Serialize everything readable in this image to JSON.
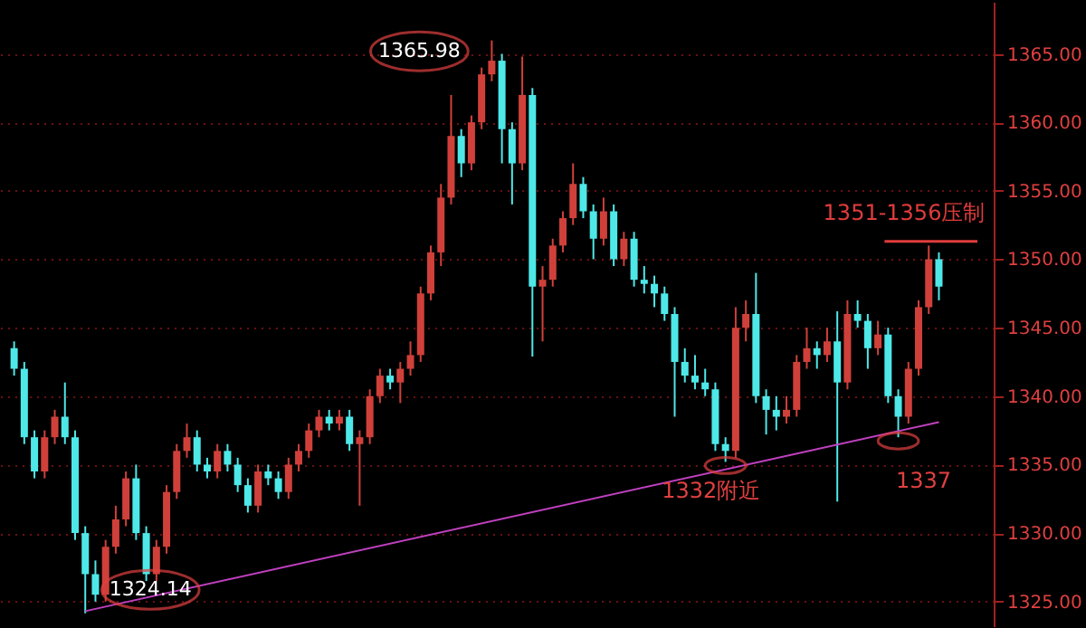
{
  "chart_data": {
    "type": "candlestick",
    "categories": [
      null,
      null,
      null,
      null,
      null,
      null,
      null,
      null,
      null,
      null,
      null,
      null,
      null,
      null,
      null,
      null,
      null,
      null,
      null,
      null,
      null,
      null,
      null,
      null,
      null,
      null,
      null,
      null,
      null,
      null,
      null,
      null,
      null,
      null,
      null,
      null,
      null,
      null,
      null,
      null,
      null,
      null,
      null,
      null,
      null,
      null,
      null,
      null,
      null,
      null,
      null,
      null,
      null,
      null,
      null,
      null,
      null,
      null,
      null,
      null,
      null,
      null,
      null,
      null,
      null,
      null,
      null,
      null,
      null,
      null,
      null,
      null,
      null,
      null,
      null,
      null,
      null,
      null,
      null,
      null,
      null,
      null,
      null,
      null,
      null,
      null,
      null,
      null,
      null,
      null,
      null,
      null
    ],
    "ohlc": [
      [
        1343.5,
        1344,
        1341.5,
        1342
      ],
      [
        1342,
        1342.5,
        1336.5,
        1337
      ],
      [
        1337,
        1337.5,
        1334,
        1334.5
      ],
      [
        1334.5,
        1337.5,
        1334,
        1337
      ],
      [
        1337,
        1339,
        1336.5,
        1338.5
      ],
      [
        1338.5,
        1341,
        1336.5,
        1337
      ],
      [
        1337,
        1337.5,
        1329.5,
        1330
      ],
      [
        1330,
        1330.5,
        1324.14,
        1327
      ],
      [
        1327,
        1328,
        1325,
        1325.5
      ],
      [
        1325.5,
        1329.5,
        1325,
        1329
      ],
      [
        1329,
        1332,
        1328.5,
        1331
      ],
      [
        1331,
        1334.5,
        1330.5,
        1334
      ],
      [
        1334,
        1335,
        1329.5,
        1330
      ],
      [
        1330,
        1330.5,
        1326.5,
        1327
      ],
      [
        1327,
        1329.5,
        1326.5,
        1329
      ],
      [
        1329,
        1333.5,
        1328.5,
        1333
      ],
      [
        1333,
        1336.5,
        1332.5,
        1336
      ],
      [
        1336,
        1338,
        1335.5,
        1337
      ],
      [
        1337,
        1337.5,
        1334.5,
        1335
      ],
      [
        1335,
        1335.5,
        1334,
        1334.5
      ],
      [
        1334.5,
        1336.5,
        1334,
        1336
      ],
      [
        1336,
        1336.5,
        1334.5,
        1335
      ],
      [
        1335,
        1335.5,
        1333,
        1333.5
      ],
      [
        1333.5,
        1334,
        1331.5,
        1332
      ],
      [
        1332,
        1335,
        1331.5,
        1334.5
      ],
      [
        1334.5,
        1335,
        1333.5,
        1334
      ],
      [
        1334,
        1334.5,
        1332.5,
        1333
      ],
      [
        1333,
        1335.5,
        1332.5,
        1335
      ],
      [
        1335,
        1336.5,
        1334.5,
        1336
      ],
      [
        1336,
        1338,
        1335.5,
        1337.5
      ],
      [
        1337.5,
        1339,
        1337,
        1338.5
      ],
      [
        1338.5,
        1339,
        1337.5,
        1338
      ],
      [
        1338,
        1339,
        1337.5,
        1338.5
      ],
      [
        1338.5,
        1339,
        1336,
        1336.5
      ],
      [
        1336.5,
        1337.5,
        1332,
        1337
      ],
      [
        1337,
        1340.5,
        1336.5,
        1340
      ],
      [
        1340,
        1342,
        1339.5,
        1341.5
      ],
      [
        1341.5,
        1342,
        1340.5,
        1341
      ],
      [
        1341,
        1342.5,
        1339.5,
        1342
      ],
      [
        1342,
        1344,
        1341.5,
        1343
      ],
      [
        1343,
        1348,
        1342.5,
        1347.5
      ],
      [
        1347.5,
        1351,
        1347,
        1350.5
      ],
      [
        1350.5,
        1355.5,
        1349.5,
        1354.5
      ],
      [
        1354.5,
        1362,
        1354,
        1359
      ],
      [
        1359,
        1359.5,
        1356,
        1357
      ],
      [
        1357,
        1360.5,
        1356.5,
        1360
      ],
      [
        1360,
        1364,
        1359.5,
        1363.5
      ],
      [
        1363.5,
        1365.98,
        1363,
        1364.5
      ],
      [
        1364.5,
        1365,
        1357,
        1359.5
      ],
      [
        1359.5,
        1360,
        1354,
        1357
      ],
      [
        1357,
        1364.8,
        1356.5,
        1362
      ],
      [
        1362,
        1362.5,
        1342.9,
        1348
      ],
      [
        1348,
        1349.5,
        1344,
        1348.5
      ],
      [
        1348.5,
        1351.5,
        1348,
        1351
      ],
      [
        1351,
        1353.5,
        1350.5,
        1353
      ],
      [
        1353,
        1357,
        1352.5,
        1355.5
      ],
      [
        1355.5,
        1356,
        1353,
        1353.5
      ],
      [
        1353.5,
        1354,
        1350,
        1351.5
      ],
      [
        1351.5,
        1354.5,
        1351,
        1353.5
      ],
      [
        1353.5,
        1354,
        1349.5,
        1350
      ],
      [
        1350,
        1352,
        1349.5,
        1351.5
      ],
      [
        1351.5,
        1352,
        1348,
        1348.5
      ],
      [
        1348.5,
        1349.5,
        1347.5,
        1348.2
      ],
      [
        1348.2,
        1348.8,
        1346.5,
        1347.5
      ],
      [
        1347.5,
        1348,
        1345.5,
        1346
      ],
      [
        1346,
        1346.5,
        1338.5,
        1342.5
      ],
      [
        1342.5,
        1343.5,
        1341,
        1341.5
      ],
      [
        1341.5,
        1343,
        1340.5,
        1341
      ],
      [
        1341,
        1342,
        1340,
        1340.5
      ],
      [
        1340.5,
        1341,
        1336,
        1336.5
      ],
      [
        1336.5,
        1337,
        1335.2,
        1336
      ],
      [
        1336,
        1346.5,
        1335.5,
        1345
      ],
      [
        1345,
        1347,
        1344,
        1346
      ],
      [
        1346,
        1349,
        1339.5,
        1340
      ],
      [
        1340,
        1340.5,
        1337.2,
        1339
      ],
      [
        1339,
        1340,
        1337.5,
        1338.5
      ],
      [
        1338.5,
        1340,
        1338,
        1339
      ],
      [
        1339,
        1343,
        1338.5,
        1342.5
      ],
      [
        1342.5,
        1345,
        1342,
        1343.5
      ],
      [
        1343.5,
        1344,
        1342,
        1343
      ],
      [
        1343,
        1345,
        1342.5,
        1344
      ],
      [
        1344,
        1346.2,
        1332.3,
        1341
      ],
      [
        1341,
        1347,
        1340.5,
        1346
      ],
      [
        1346,
        1347,
        1345,
        1345.5
      ],
      [
        1345.5,
        1346,
        1342,
        1343.5
      ],
      [
        1343.5,
        1345.5,
        1343,
        1344.5
      ],
      [
        1344.5,
        1345,
        1339.5,
        1340
      ],
      [
        1340,
        1340.5,
        1337,
        1338.5
      ],
      [
        1338.5,
        1342.5,
        1338,
        1342
      ],
      [
        1342,
        1347,
        1341.5,
        1346.5
      ],
      [
        1346.5,
        1351,
        1346,
        1350
      ],
      [
        1350,
        1350.5,
        1347,
        1348
      ]
    ],
    "colors": [
      "#4ee8e8",
      "#4ee8e8",
      "#4ee8e8",
      "#d0403a",
      "#d0403a",
      "#4ee8e8",
      "#4ee8e8",
      "#4ee8e8",
      "#4ee8e8",
      "#d0403a",
      "#d0403a",
      "#d0403a",
      "#4ee8e8",
      "#4ee8e8",
      "#d0403a",
      "#d0403a",
      "#d0403a",
      "#d0403a",
      "#4ee8e8",
      "#4ee8e8",
      "#d0403a",
      "#4ee8e8",
      "#4ee8e8",
      "#4ee8e8",
      "#d0403a",
      "#4ee8e8",
      "#4ee8e8",
      "#d0403a",
      "#d0403a",
      "#d0403a",
      "#d0403a",
      "#4ee8e8",
      "#d0403a",
      "#4ee8e8",
      "#d0403a",
      "#d0403a",
      "#d0403a",
      "#4ee8e8",
      "#d0403a",
      "#d0403a",
      "#d0403a",
      "#d0403a",
      "#d0403a",
      "#d0403a",
      "#4ee8e8",
      "#d0403a",
      "#d0403a",
      "#d0403a",
      "#4ee8e8",
      "#4ee8e8",
      "#d0403a",
      "#4ee8e8",
      "#d0403a",
      "#d0403a",
      "#d0403a",
      "#d0403a",
      "#4ee8e8",
      "#4ee8e8",
      "#d0403a",
      "#4ee8e8",
      "#d0403a",
      "#4ee8e8",
      "#4ee8e8",
      "#4ee8e8",
      "#4ee8e8",
      "#4ee8e8",
      "#4ee8e8",
      "#4ee8e8",
      "#4ee8e8",
      "#4ee8e8",
      "#4ee8e8",
      "#d0403a",
      "#d0403a",
      "#4ee8e8",
      "#4ee8e8",
      "#4ee8e8",
      "#d0403a",
      "#d0403a",
      "#d0403a",
      "#4ee8e8",
      "#d0403a",
      "#4ee8e8",
      "#d0403a",
      "#4ee8e8",
      "#4ee8e8",
      "#d0403a",
      "#4ee8e8",
      "#4ee8e8",
      "#d0403a",
      "#d0403a",
      "#d0403a",
      "#4ee8e8"
    ],
    "series": [
      {
        "type": "line",
        "color": "#c040c0",
        "values": [
          null,
          null,
          null,
          null,
          null,
          null,
          null,
          1324.3,
          null,
          null,
          null,
          null,
          null,
          null,
          null,
          null,
          null,
          null,
          null,
          null,
          null,
          null,
          null,
          null,
          null,
          null,
          null,
          null,
          null,
          null,
          null,
          null,
          null,
          null,
          null,
          null,
          null,
          null,
          null,
          null,
          null,
          null,
          null,
          null,
          null,
          null,
          null,
          null,
          null,
          null,
          null,
          null,
          null,
          null,
          null,
          null,
          null,
          null,
          null,
          null,
          null,
          null,
          null,
          null,
          null,
          null,
          null,
          null,
          null,
          null,
          null,
          null,
          null,
          null,
          null,
          null,
          null,
          null,
          null,
          null,
          null,
          null,
          null,
          null,
          null,
          null,
          null,
          null,
          null,
          null,
          null,
          1338.1
        ]
      }
    ],
    "ylim": [
      1323.2,
      1368.8
    ],
    "yticks": [
      {
        "value": 1325,
        "label": "1325.00"
      },
      {
        "value": 1330,
        "label": "1330.00"
      },
      {
        "value": 1335,
        "label": "1335.00"
      },
      {
        "value": 1340,
        "label": "1340.00"
      },
      {
        "value": 1345,
        "label": "1345.00"
      },
      {
        "value": 1350,
        "label": "1350.00"
      },
      {
        "value": 1355,
        "label": "1355.00"
      },
      {
        "value": 1360,
        "label": "1360.00"
      },
      {
        "value": 1365,
        "label": "1365.00"
      }
    ],
    "tick_labels": "y",
    "grid": "y",
    "ref_lines": [
      {
        "axis": "y",
        "value": 1351.3,
        "label": "1351-1356压制",
        "color": "#e03c3c"
      }
    ],
    "annotations": [
      "1365.98",
      "1324.14",
      "1332附近",
      "1337"
    ]
  }
}
